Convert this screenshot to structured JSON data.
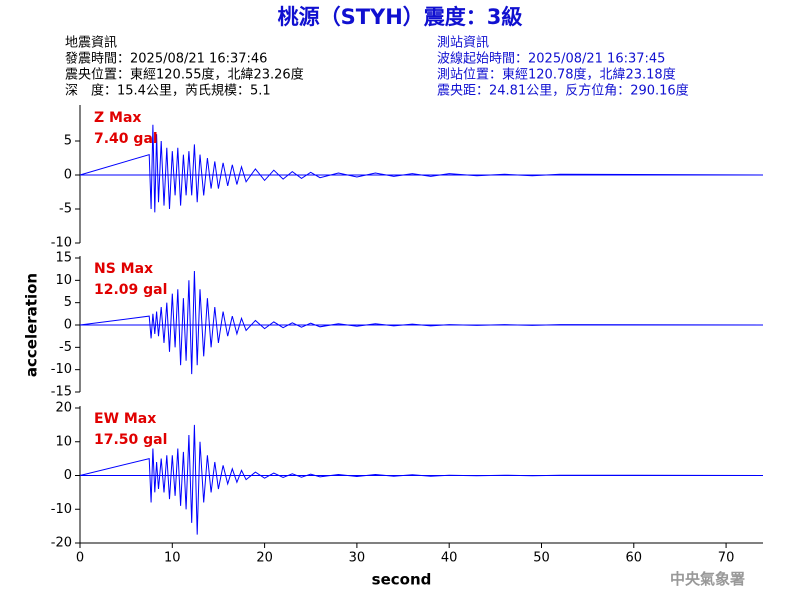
{
  "header": {
    "title": "桃源（STYH）震度：3級",
    "left": [
      "地震資訊",
      "發震時間：2025/08/21 16:37:46",
      "震央位置：東經120.55度，北緯23.26度",
      "深　度：15.4公里，芮氏規模：5.1"
    ],
    "right": [
      "測站資訊",
      "波線起始時間：2025/08/21 16:37:45",
      "測站位置：東經120.78度，北緯23.18度",
      "震央距：24.81公里，反方位角：290.16度"
    ],
    "footer": "中央氣象署"
  },
  "chart_data": [
    {
      "type": "line",
      "max_label": "Z Max",
      "max_value_label": "7.40 gal",
      "color": "#0000ff",
      "x": [
        0,
        7.5,
        7.7,
        7.9,
        8.1,
        8.3,
        8.5,
        8.8,
        9.1,
        9.4,
        9.7,
        10,
        10.3,
        10.6,
        10.9,
        11.2,
        11.5,
        11.8,
        12.1,
        12.4,
        12.7,
        13,
        13.4,
        13.8,
        14.2,
        14.6,
        15,
        15.5,
        16,
        16.5,
        17,
        17.5,
        18,
        19,
        20,
        21,
        22,
        23,
        24,
        25,
        26,
        28,
        30,
        32,
        34,
        36,
        38,
        40,
        43,
        46,
        49,
        52,
        74
      ],
      "values": [
        0,
        3,
        -5,
        7.4,
        -5.5,
        6,
        -4,
        5,
        -4.5,
        4,
        -5,
        3.5,
        -3,
        4,
        -4.5,
        3,
        -3,
        3.5,
        -3,
        4.5,
        -4,
        3,
        -3,
        2.5,
        -2,
        2,
        -2,
        1.8,
        -1.6,
        1.5,
        -1.4,
        1.2,
        -1,
        0.9,
        -0.8,
        0.7,
        -0.6,
        0.5,
        -0.5,
        0.4,
        -0.4,
        0.3,
        -0.3,
        0.3,
        -0.2,
        0.2,
        -0.2,
        0.2,
        -0.1,
        0.1,
        -0.1,
        0.1,
        0
      ],
      "xlim": [
        0,
        74
      ],
      "ylim": [
        -10,
        10
      ],
      "yticks": [
        -10,
        -5,
        0,
        5
      ]
    },
    {
      "type": "line",
      "max_label": "NS Max",
      "max_value_label": "12.09 gal",
      "color": "#0000ff",
      "ylabel": "acceleration",
      "x": [
        0,
        7.5,
        7.7,
        7.9,
        8.1,
        8.3,
        8.5,
        8.8,
        9.1,
        9.4,
        9.7,
        10,
        10.3,
        10.6,
        10.9,
        11.2,
        11.5,
        11.8,
        12.1,
        12.4,
        12.7,
        13,
        13.4,
        13.8,
        14.2,
        14.6,
        15,
        15.5,
        16,
        16.5,
        17,
        17.5,
        18,
        19,
        20,
        21,
        22,
        23,
        24,
        25,
        26,
        28,
        30,
        32,
        34,
        36,
        38,
        40,
        43,
        46,
        49,
        52,
        74
      ],
      "values": [
        0,
        2,
        -3,
        2.5,
        -2,
        3,
        -2.5,
        4,
        -4,
        5,
        -6,
        7,
        -5,
        8,
        -9,
        6,
        -8,
        10,
        -11,
        12.09,
        -9,
        8,
        -7,
        6,
        -5,
        4,
        -4,
        3,
        -2.5,
        2,
        -2,
        1.5,
        -1.2,
        1,
        -0.8,
        0.7,
        -0.6,
        0.5,
        -0.5,
        0.4,
        -0.4,
        0.3,
        -0.3,
        0.3,
        -0.2,
        0.2,
        -0.2,
        0.1,
        -0.1,
        0.1,
        -0.1,
        0.1,
        0
      ],
      "xlim": [
        0,
        74
      ],
      "ylim": [
        -15,
        15
      ],
      "yticks": [
        -15,
        -10,
        -5,
        0,
        5,
        10,
        15
      ]
    },
    {
      "type": "line",
      "max_label": "EW Max",
      "max_value_label": "17.50 gal",
      "color": "#0000ff",
      "xlabel": "second",
      "x": [
        0,
        7.5,
        7.7,
        7.9,
        8.1,
        8.3,
        8.5,
        8.8,
        9.1,
        9.4,
        9.7,
        10,
        10.3,
        10.6,
        10.9,
        11.2,
        11.5,
        11.8,
        12.1,
        12.4,
        12.7,
        13,
        13.4,
        13.8,
        14.2,
        14.6,
        15,
        15.5,
        16,
        16.5,
        17,
        17.5,
        18,
        19,
        20,
        21,
        22,
        23,
        24,
        25,
        26,
        28,
        30,
        32,
        34,
        36,
        38,
        40,
        43,
        46,
        49,
        52,
        74
      ],
      "values": [
        0,
        5,
        -8,
        8,
        -5,
        4,
        -4,
        5,
        -5,
        6,
        -7,
        6,
        -6,
        8,
        -9,
        7,
        -10,
        12,
        -14,
        15,
        -17.5,
        10,
        -8,
        6,
        -5,
        4,
        -4,
        3,
        -2.5,
        2,
        -2,
        1.5,
        -1.2,
        1,
        -0.8,
        0.7,
        -0.6,
        0.5,
        -0.5,
        0.4,
        -0.4,
        0.3,
        -0.3,
        0.3,
        -0.2,
        0.2,
        -0.2,
        0.1,
        -0.1,
        0.1,
        -0.1,
        0.1,
        0
      ],
      "xlim": [
        0,
        74
      ],
      "ylim": [
        -20,
        20
      ],
      "yticks": [
        -20,
        -10,
        0,
        10,
        20
      ],
      "xticks": [
        0,
        10,
        20,
        30,
        40,
        50,
        60,
        70
      ]
    }
  ]
}
